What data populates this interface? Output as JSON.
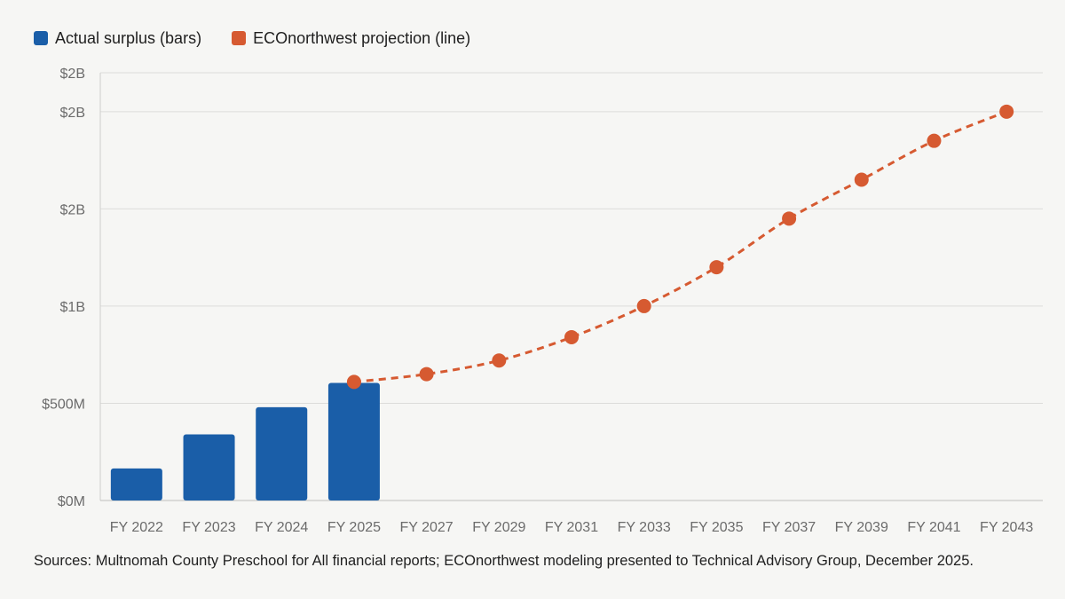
{
  "chart_data": {
    "type": "bar",
    "categories": [
      "FY 2022",
      "FY 2023",
      "FY 2024",
      "FY 2025",
      "FY 2027",
      "FY 2029",
      "FY 2031",
      "FY 2033",
      "FY 2035",
      "FY 2037",
      "FY 2039",
      "FY 2041",
      "FY 2043"
    ],
    "ylim": [
      0,
      2200
    ],
    "y_ticks": [
      {
        "value": 0,
        "label": "$0M"
      },
      {
        "value": 500,
        "label": "$500M"
      },
      {
        "value": 1000,
        "label": "$1B"
      },
      {
        "value": 1500,
        "label": "$2B"
      },
      {
        "value": 2000,
        "label": "$2B"
      },
      {
        "value": 2200,
        "label": "$2B"
      }
    ],
    "grid": true,
    "series": [
      {
        "name": "Actual surplus (bars)",
        "type": "bar",
        "color": "#1a5ea8",
        "values": [
          165,
          340,
          480,
          605,
          null,
          null,
          null,
          null,
          null,
          null,
          null,
          null,
          null
        ]
      },
      {
        "name": "ECOnorthwest projection (line)",
        "type": "line",
        "style": "dashed",
        "color": "#d65a31",
        "values": [
          null,
          null,
          null,
          610,
          650,
          720,
          840,
          1000,
          1200,
          1450,
          1650,
          1850,
          2000
        ]
      }
    ]
  },
  "source_note": "Sources: Multnomah County Preschool for All financial reports; ECOnorthwest modeling presented to Technical Advisory Group, December 2025."
}
